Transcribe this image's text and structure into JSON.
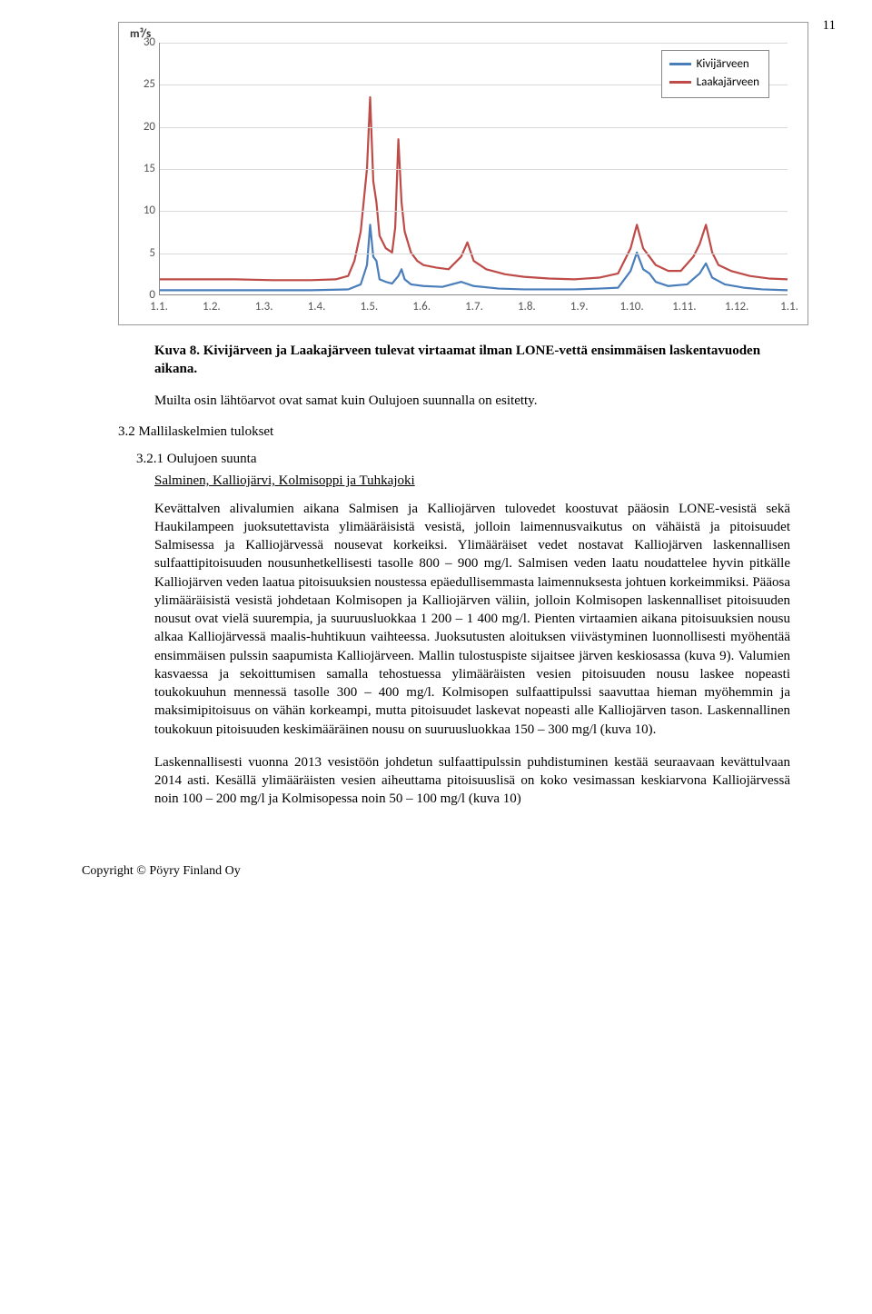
{
  "page_number": "11",
  "chart": {
    "type": "line",
    "y_axis_label": "m³/s",
    "y_ticks": [
      0,
      5,
      10,
      15,
      20,
      25,
      30
    ],
    "ylim": [
      0,
      30
    ],
    "x_ticks": [
      "1.1.",
      "1.2.",
      "1.3.",
      "1.4.",
      "1.5.",
      "1.6.",
      "1.7.",
      "1.8.",
      "1.9.",
      "1.10.",
      "1.11.",
      "1.12.",
      "1.1."
    ],
    "grid_color": "#d9d9d9",
    "axis_color": "#888888",
    "background_color": "#ffffff",
    "legend": {
      "position": "top-right",
      "items": [
        {
          "label": "Kivijärveen",
          "color": "#4a7ebb"
        },
        {
          "label": "Laakajärveen",
          "color": "#be4b48"
        }
      ]
    },
    "series": [
      {
        "name": "Kivijärveen",
        "color": "#4a7ebb",
        "stroke_width": 2.2,
        "points": [
          [
            0,
            0.5
          ],
          [
            8,
            0.5
          ],
          [
            16,
            0.5
          ],
          [
            24,
            0.5
          ],
          [
            30,
            0.6
          ],
          [
            32,
            1.2
          ],
          [
            33,
            3.5
          ],
          [
            33.5,
            8.3
          ],
          [
            34,
            4.5
          ],
          [
            34.5,
            4.0
          ],
          [
            35,
            1.8
          ],
          [
            36,
            1.5
          ],
          [
            37,
            1.3
          ],
          [
            38,
            2.2
          ],
          [
            38.5,
            3.0
          ],
          [
            39,
            1.8
          ],
          [
            40,
            1.2
          ],
          [
            42,
            1.0
          ],
          [
            45,
            0.9
          ],
          [
            48,
            1.5
          ],
          [
            50,
            1.0
          ],
          [
            54,
            0.7
          ],
          [
            58,
            0.6
          ],
          [
            62,
            0.6
          ],
          [
            66,
            0.6
          ],
          [
            70,
            0.7
          ],
          [
            73,
            0.8
          ],
          [
            75,
            2.8
          ],
          [
            76,
            5.0
          ],
          [
            77,
            3.0
          ],
          [
            78,
            2.5
          ],
          [
            79,
            1.5
          ],
          [
            81,
            1.0
          ],
          [
            84,
            1.2
          ],
          [
            86,
            2.5
          ],
          [
            87,
            3.7
          ],
          [
            88,
            2.0
          ],
          [
            90,
            1.2
          ],
          [
            93,
            0.8
          ],
          [
            96,
            0.6
          ],
          [
            100,
            0.5
          ]
        ]
      },
      {
        "name": "Laakajärveen",
        "color": "#be4b48",
        "stroke_width": 2.2,
        "points": [
          [
            0,
            1.8
          ],
          [
            6,
            1.8
          ],
          [
            12,
            1.8
          ],
          [
            18,
            1.7
          ],
          [
            24,
            1.7
          ],
          [
            28,
            1.8
          ],
          [
            30,
            2.2
          ],
          [
            31,
            4.0
          ],
          [
            32,
            7.5
          ],
          [
            33,
            15.0
          ],
          [
            33.5,
            23.5
          ],
          [
            34,
            13.5
          ],
          [
            34.5,
            11.0
          ],
          [
            35,
            7.0
          ],
          [
            36,
            5.5
          ],
          [
            37,
            5.0
          ],
          [
            37.5,
            8.0
          ],
          [
            38,
            18.5
          ],
          [
            38.5,
            11.0
          ],
          [
            39,
            7.5
          ],
          [
            40,
            5.0
          ],
          [
            41,
            4.0
          ],
          [
            42,
            3.5
          ],
          [
            44,
            3.2
          ],
          [
            46,
            3.0
          ],
          [
            48,
            4.5
          ],
          [
            49,
            6.2
          ],
          [
            50,
            4.0
          ],
          [
            52,
            3.0
          ],
          [
            55,
            2.4
          ],
          [
            58,
            2.1
          ],
          [
            62,
            1.9
          ],
          [
            66,
            1.8
          ],
          [
            70,
            2.0
          ],
          [
            73,
            2.5
          ],
          [
            75,
            5.5
          ],
          [
            76,
            8.3
          ],
          [
            77,
            5.5
          ],
          [
            78,
            4.5
          ],
          [
            79,
            3.5
          ],
          [
            81,
            2.8
          ],
          [
            83,
            2.8
          ],
          [
            85,
            4.5
          ],
          [
            86,
            6.0
          ],
          [
            87,
            8.3
          ],
          [
            88,
            5.0
          ],
          [
            89,
            3.5
          ],
          [
            91,
            2.8
          ],
          [
            94,
            2.2
          ],
          [
            97,
            1.9
          ],
          [
            100,
            1.8
          ]
        ]
      }
    ]
  },
  "caption": "Kuva 8. Kivijärveen ja Laakajärveen tulevat virtaamat ilman LONE-vettä ensimmäisen laskentavuoden aikana.",
  "intro_para": "Muilta osin lähtöarvot ovat samat kuin Oulujoen suunnalla on esitetty.",
  "heading_3_2": "3.2   Mallilaskelmien tulokset",
  "heading_3_2_1": "3.2.1   Oulujoen suunta",
  "subheading": "Salminen, Kalliojärvi, Kolmisoppi ja Tuhkajoki",
  "body1": "Kevättalven alivalumien aikana Salmisen ja Kalliojärven tulovedet koostuvat pääosin LONE-vesistä sekä Haukilampeen juoksutettavista ylimääräisistä vesistä, jolloin laimennusvaikutus on vähäistä ja pitoisuudet Salmisessa ja Kalliojärvessä nousevat korkeiksi. Ylimääräiset vedet nostavat Kalliojärven laskennallisen sulfaattipitoisuuden nousunhetkellisesti tasolle 800 – 900 mg/l. Salmisen veden laatu noudattelee hyvin pitkälle Kalliojärven veden laatua pitoisuuksien noustessa epäedullisemmasta laimennuksesta johtuen korkeimmiksi. Pääosa ylimääräisistä vesistä johdetaan Kolmisopen ja Kalliojärven väliin, jolloin Kolmisopen laskennalliset pitoisuuden nousut ovat vielä suurempia, ja suuruusluokkaa 1 200 – 1 400 mg/l. Pienten virtaamien aikana pitoisuuksien nousu alkaa Kalliojärvessä maalis-huhtikuun vaihteessa. Juoksutusten aloituksen viivästyminen luonnollisesti myöhentää ensimmäisen pulssin saapumista Kalliojärveen. Mallin tulostuspiste sijaitsee järven keskiosassa (kuva 9). Valumien kasvaessa ja sekoittumisen samalla tehostuessa ylimääräisten vesien pitoisuuden nousu laskee nopeasti toukokuuhun mennessä tasolle 300 – 400 mg/l. Kolmisopen sulfaattipulssi saavuttaa hieman myöhemmin ja maksimipitoisuus on vähän korkeampi, mutta pitoisuudet laskevat nopeasti alle Kalliojärven tason. Laskennallinen toukokuun pitoisuuden keskimääräinen nousu on suuruusluokkaa 150 – 300 mg/l (kuva 10).",
  "body2": "Laskennallisesti vuonna 2013 vesistöön johdetun sulfaattipulssin puhdistuminen kestää seuraavaan kevättulvaan 2014 asti. Kesällä ylimääräisten vesien aiheuttama pitoisuuslisä on koko vesimassan keskiarvona Kalliojärvessä noin 100 – 200 mg/l ja Kolmisopessa noin 50 – 100 mg/l (kuva 10)",
  "footer": "Copyright © Pöyry Finland Oy"
}
